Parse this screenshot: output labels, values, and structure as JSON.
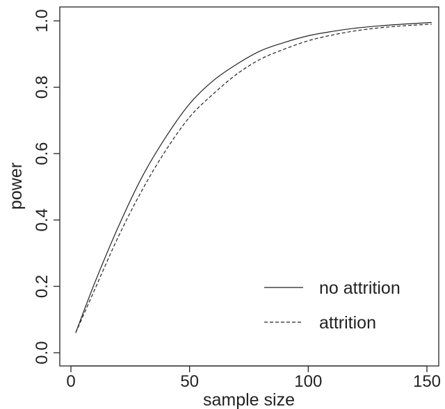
{
  "chart_data": {
    "type": "line",
    "title": "",
    "xlabel": "sample size",
    "ylabel": "power",
    "xlim": [
      0,
      150
    ],
    "ylim": [
      0,
      1
    ],
    "x_ticks": [
      "0",
      "50",
      "100",
      "150"
    ],
    "y_ticks": [
      "0.0",
      "0.2",
      "0.4",
      "0.6",
      "0.8",
      "1.0"
    ],
    "grid": false,
    "legend_position": "bottom-right",
    "x": [
      2,
      10,
      20,
      30,
      40,
      50,
      60,
      70,
      80,
      90,
      100,
      110,
      120,
      130,
      140,
      152
    ],
    "series": [
      {
        "name": "no attrition",
        "line_style": "solid",
        "values": [
          0.06,
          0.21,
          0.38,
          0.53,
          0.65,
          0.75,
          0.82,
          0.87,
          0.91,
          0.935,
          0.955,
          0.968,
          0.978,
          0.985,
          0.99,
          0.995
        ]
      },
      {
        "name": "attrition",
        "line_style": "dashed",
        "values": [
          0.06,
          0.19,
          0.35,
          0.49,
          0.61,
          0.71,
          0.78,
          0.84,
          0.885,
          0.915,
          0.94,
          0.957,
          0.97,
          0.979,
          0.985,
          0.99
        ]
      }
    ]
  }
}
